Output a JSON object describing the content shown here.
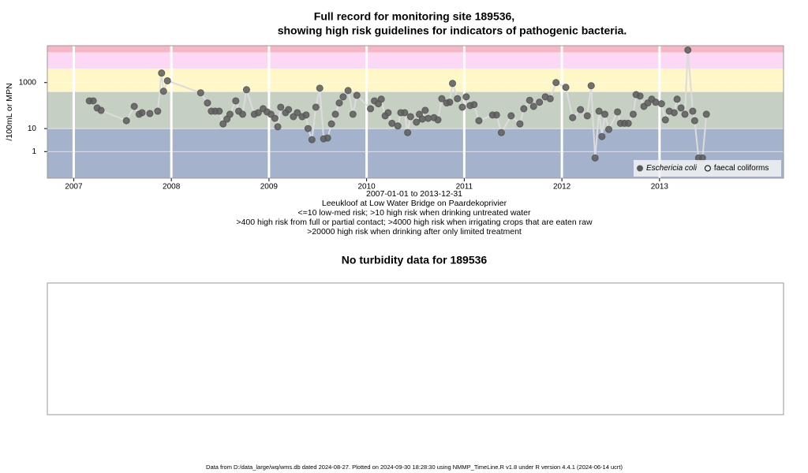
{
  "chart_data": {
    "type": "scatter",
    "title": "Full record for monitoring site 189536,",
    "subtitle": "showing high risk guidelines for indicators of pathogenic bacteria.",
    "ylabel": "/100mL or MPN",
    "notes": [
      "2007-01-01 to 2013-12-31",
      "Leeukloof at Low Water Bridge on Paardekoprivier",
      "<=10 low-med risk; >10 high risk when drinking untreated water",
      ">400 high risk from full or partial contact; >4000 high risk when irrigating crops that are eaten raw",
      ">20000 high risk when drinking after only limited treatment"
    ],
    "log_y": true,
    "xlim": [
      2006.73,
      2014.27
    ],
    "xticks": [
      2007,
      2008,
      2009,
      2010,
      2011,
      2012,
      2013
    ],
    "ylim": [
      0.07,
      40000
    ],
    "yticks": [
      1,
      10,
      1000
    ],
    "guidelines": [
      10,
      400,
      4000,
      20000
    ],
    "band_colors": [
      "#a4b2cc",
      "#c6d0c2",
      "#fff7c6",
      "#fbd8f3",
      "#f6b6c4"
    ],
    "line_color": "#dcdcdc",
    "legend": "bottom-right",
    "series": [
      {
        "name": "Eschericia coli",
        "color": "#5a5a5a",
        "filled": true,
        "x": [
          2007.16,
          2007.2,
          2007.24,
          2007.28,
          2007.54,
          2007.62,
          2007.67,
          2007.7,
          2007.78,
          2007.86,
          2007.9,
          2007.92,
          2007.96,
          2008.3,
          2008.37,
          2008.41,
          2008.45,
          2008.49,
          2008.53,
          2008.57,
          2008.6,
          2008.66,
          2008.69,
          2008.73,
          2008.77,
          2008.85,
          2008.89,
          2008.94,
          2008.98,
          2009.02,
          2009.06,
          2009.09,
          2009.12,
          2009.17,
          2009.2,
          2009.25,
          2009.29,
          2009.34,
          2009.38,
          2009.4,
          2009.44,
          2009.48,
          2009.52,
          2009.56,
          2009.6,
          2009.64,
          2009.68,
          2009.72,
          2009.76,
          2009.81,
          2009.86,
          2009.9,
          2010.04,
          2010.08,
          2010.12,
          2010.15,
          2010.19,
          2010.22,
          2010.26,
          2010.32,
          2010.35,
          2010.39,
          2010.42,
          2010.45,
          2010.51,
          2010.54,
          2010.57,
          2010.6,
          2010.63,
          2010.69,
          2010.73,
          2010.77,
          2010.82,
          2010.85,
          2010.88,
          2010.93,
          2010.98,
          2011.02,
          2011.06,
          2011.1,
          2011.15,
          2011.29,
          2011.33,
          2011.38,
          2011.48,
          2011.57,
          2011.61,
          2011.67,
          2011.71,
          2011.77,
          2011.83,
          2011.88,
          2011.94,
          2012.04,
          2012.11,
          2012.19,
          2012.26,
          2012.3,
          2012.34,
          2012.38,
          2012.41,
          2012.44,
          2012.48,
          2012.57,
          2012.6,
          2012.64,
          2012.68,
          2012.73,
          2012.76,
          2012.8,
          2012.84,
          2012.88,
          2012.92,
          2012.96,
          2013.02,
          2013.06,
          2013.1,
          2013.15,
          2013.18,
          2013.22,
          2013.26,
          2013.29,
          2013.34,
          2013.36,
          2013.4,
          2013.44,
          2013.48
        ],
        "values": [
          160,
          160,
          79,
          62,
          22,
          92,
          42,
          49,
          45,
          57,
          2600,
          420,
          1200,
          360,
          130,
          57,
          57,
          57,
          16,
          26,
          42,
          160,
          57,
          42,
          490,
          42,
          49,
          73,
          53,
          42,
          28,
          12,
          85,
          49,
          67,
          33,
          49,
          33,
          39,
          10,
          3.3,
          85,
          570,
          3.6,
          3.9,
          16,
          42,
          130,
          240,
          450,
          42,
          280,
          73,
          160,
          120,
          190,
          36,
          49,
          17,
          13,
          49,
          49,
          6.7,
          33,
          19,
          42,
          26,
          62,
          28,
          30,
          24,
          200,
          130,
          140,
          920,
          200,
          85,
          240,
          100,
          110,
          22,
          39,
          39,
          6.7,
          36,
          16,
          73,
          170,
          92,
          140,
          240,
          200,
          1000,
          620,
          30,
          67,
          36,
          730,
          0.53,
          57,
          4.5,
          42,
          9.2,
          53,
          17,
          17,
          17,
          42,
          300,
          260,
          92,
          130,
          190,
          140,
          120,
          24,
          57,
          49,
          190,
          79,
          42,
          26000,
          57,
          22,
          0.53,
          0.53,
          42
        ]
      },
      {
        "name": "faecal coliforms",
        "color": "#000000",
        "filled": false,
        "x": [],
        "values": []
      }
    ]
  },
  "turbidity": {
    "title": "No turbidity data for 189536"
  },
  "footer": "Data from D:/data_large/wq/wms.db dated 2024-08-27. Plotted on 2024-09-30 18:28:30 using NMMP_TimeLine.R v1.8 under R version 4.4.1 (2024-06-14 ucrt)"
}
